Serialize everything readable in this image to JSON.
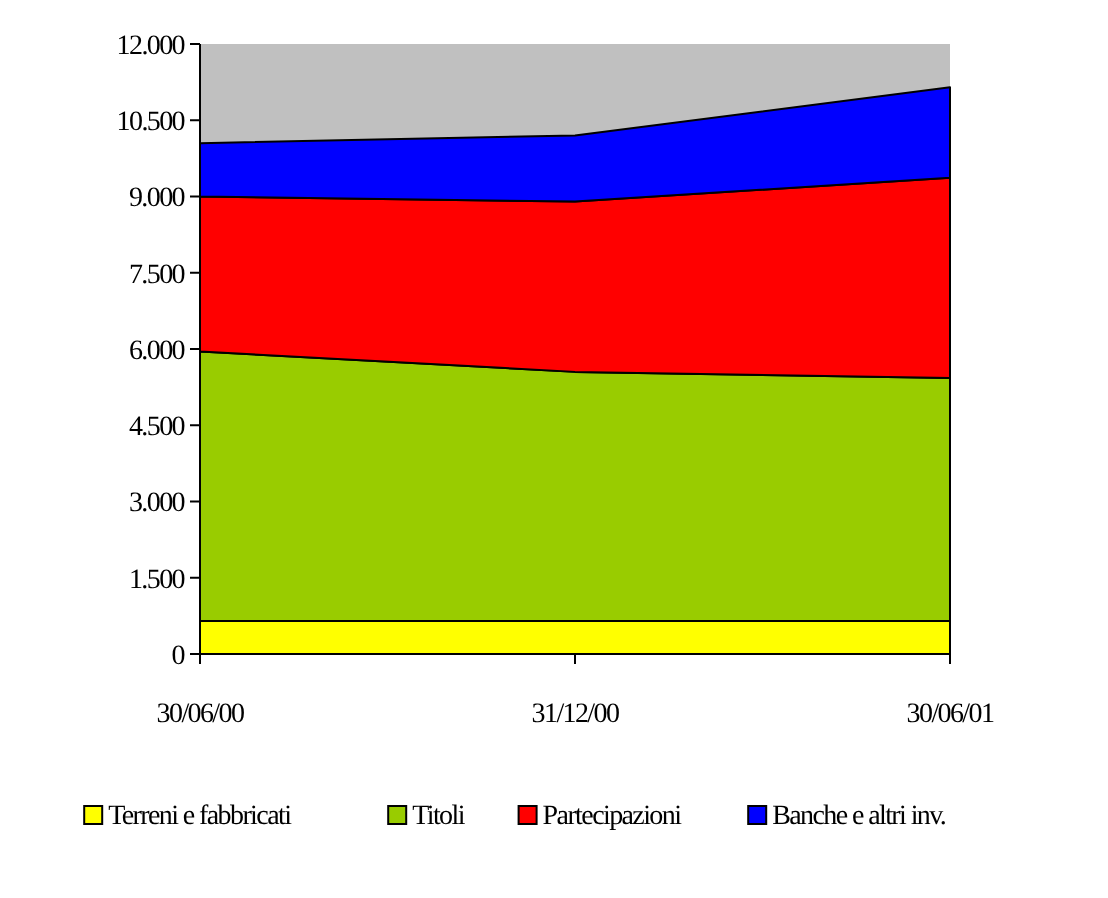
{
  "chart_data": {
    "type": "area",
    "stacked": true,
    "categories": [
      "30/06/00",
      "31/12/00",
      "30/06/01"
    ],
    "series": [
      {
        "name": "Terreni e fabbricati",
        "color": "#ffff00",
        "values": [
          650,
          650,
          650
        ]
      },
      {
        "name": "Titoli",
        "color": "#99cc00",
        "values": [
          5300,
          4900,
          4780
        ]
      },
      {
        "name": "Partecipazioni",
        "color": "#ff0000",
        "values": [
          3050,
          3350,
          3940
        ]
      },
      {
        "name": "Banche e altri inv.",
        "color": "#0000ff",
        "values": [
          1050,
          1300,
          1780
        ]
      }
    ],
    "ylim": [
      0,
      12000
    ],
    "yticks": [
      {
        "value": 0,
        "label": "0"
      },
      {
        "value": 1500,
        "label": "1.500"
      },
      {
        "value": 3000,
        "label": "3.000"
      },
      {
        "value": 4500,
        "label": "4.500"
      },
      {
        "value": 6000,
        "label": "6.000"
      },
      {
        "value": 7500,
        "label": "7.500"
      },
      {
        "value": 9000,
        "label": "9.000"
      },
      {
        "value": 10500,
        "label": "10.500"
      },
      {
        "value": 12000,
        "label": "12.000"
      }
    ],
    "grid": false,
    "legend": "bottom"
  }
}
